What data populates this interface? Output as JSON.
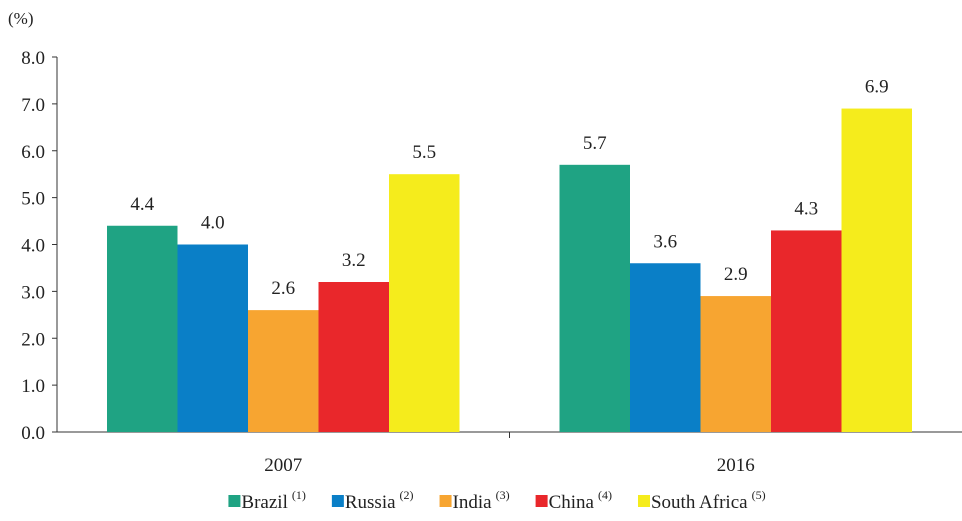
{
  "chart_data": {
    "type": "bar",
    "unit_label": "(%)",
    "categories": [
      "2007",
      "2016"
    ],
    "series": [
      {
        "name": "Brazil",
        "note": "(1)",
        "color": "#1fa383",
        "values": [
          4.4,
          5.7
        ]
      },
      {
        "name": "Russia",
        "note": "(2)",
        "color": "#0a7fc7",
        "values": [
          4.0,
          3.6
        ]
      },
      {
        "name": "India",
        "note": "(3)",
        "color": "#f7a531",
        "values": [
          2.6,
          2.9
        ]
      },
      {
        "name": "China",
        "note": "(4)",
        "color": "#e9272b",
        "values": [
          3.2,
          4.3
        ]
      },
      {
        "name": "South Africa",
        "note": "(5)",
        "color": "#f5ec1c",
        "values": [
          5.5,
          6.9
        ]
      }
    ],
    "ylim": [
      0,
      8
    ],
    "yticks": [
      "0.0",
      "1.0",
      "2.0",
      "3.0",
      "4.0",
      "5.0",
      "6.0",
      "7.0",
      "8.0"
    ],
    "xlabel": "",
    "ylabel": "",
    "grid": false,
    "legend_position": "bottom"
  }
}
